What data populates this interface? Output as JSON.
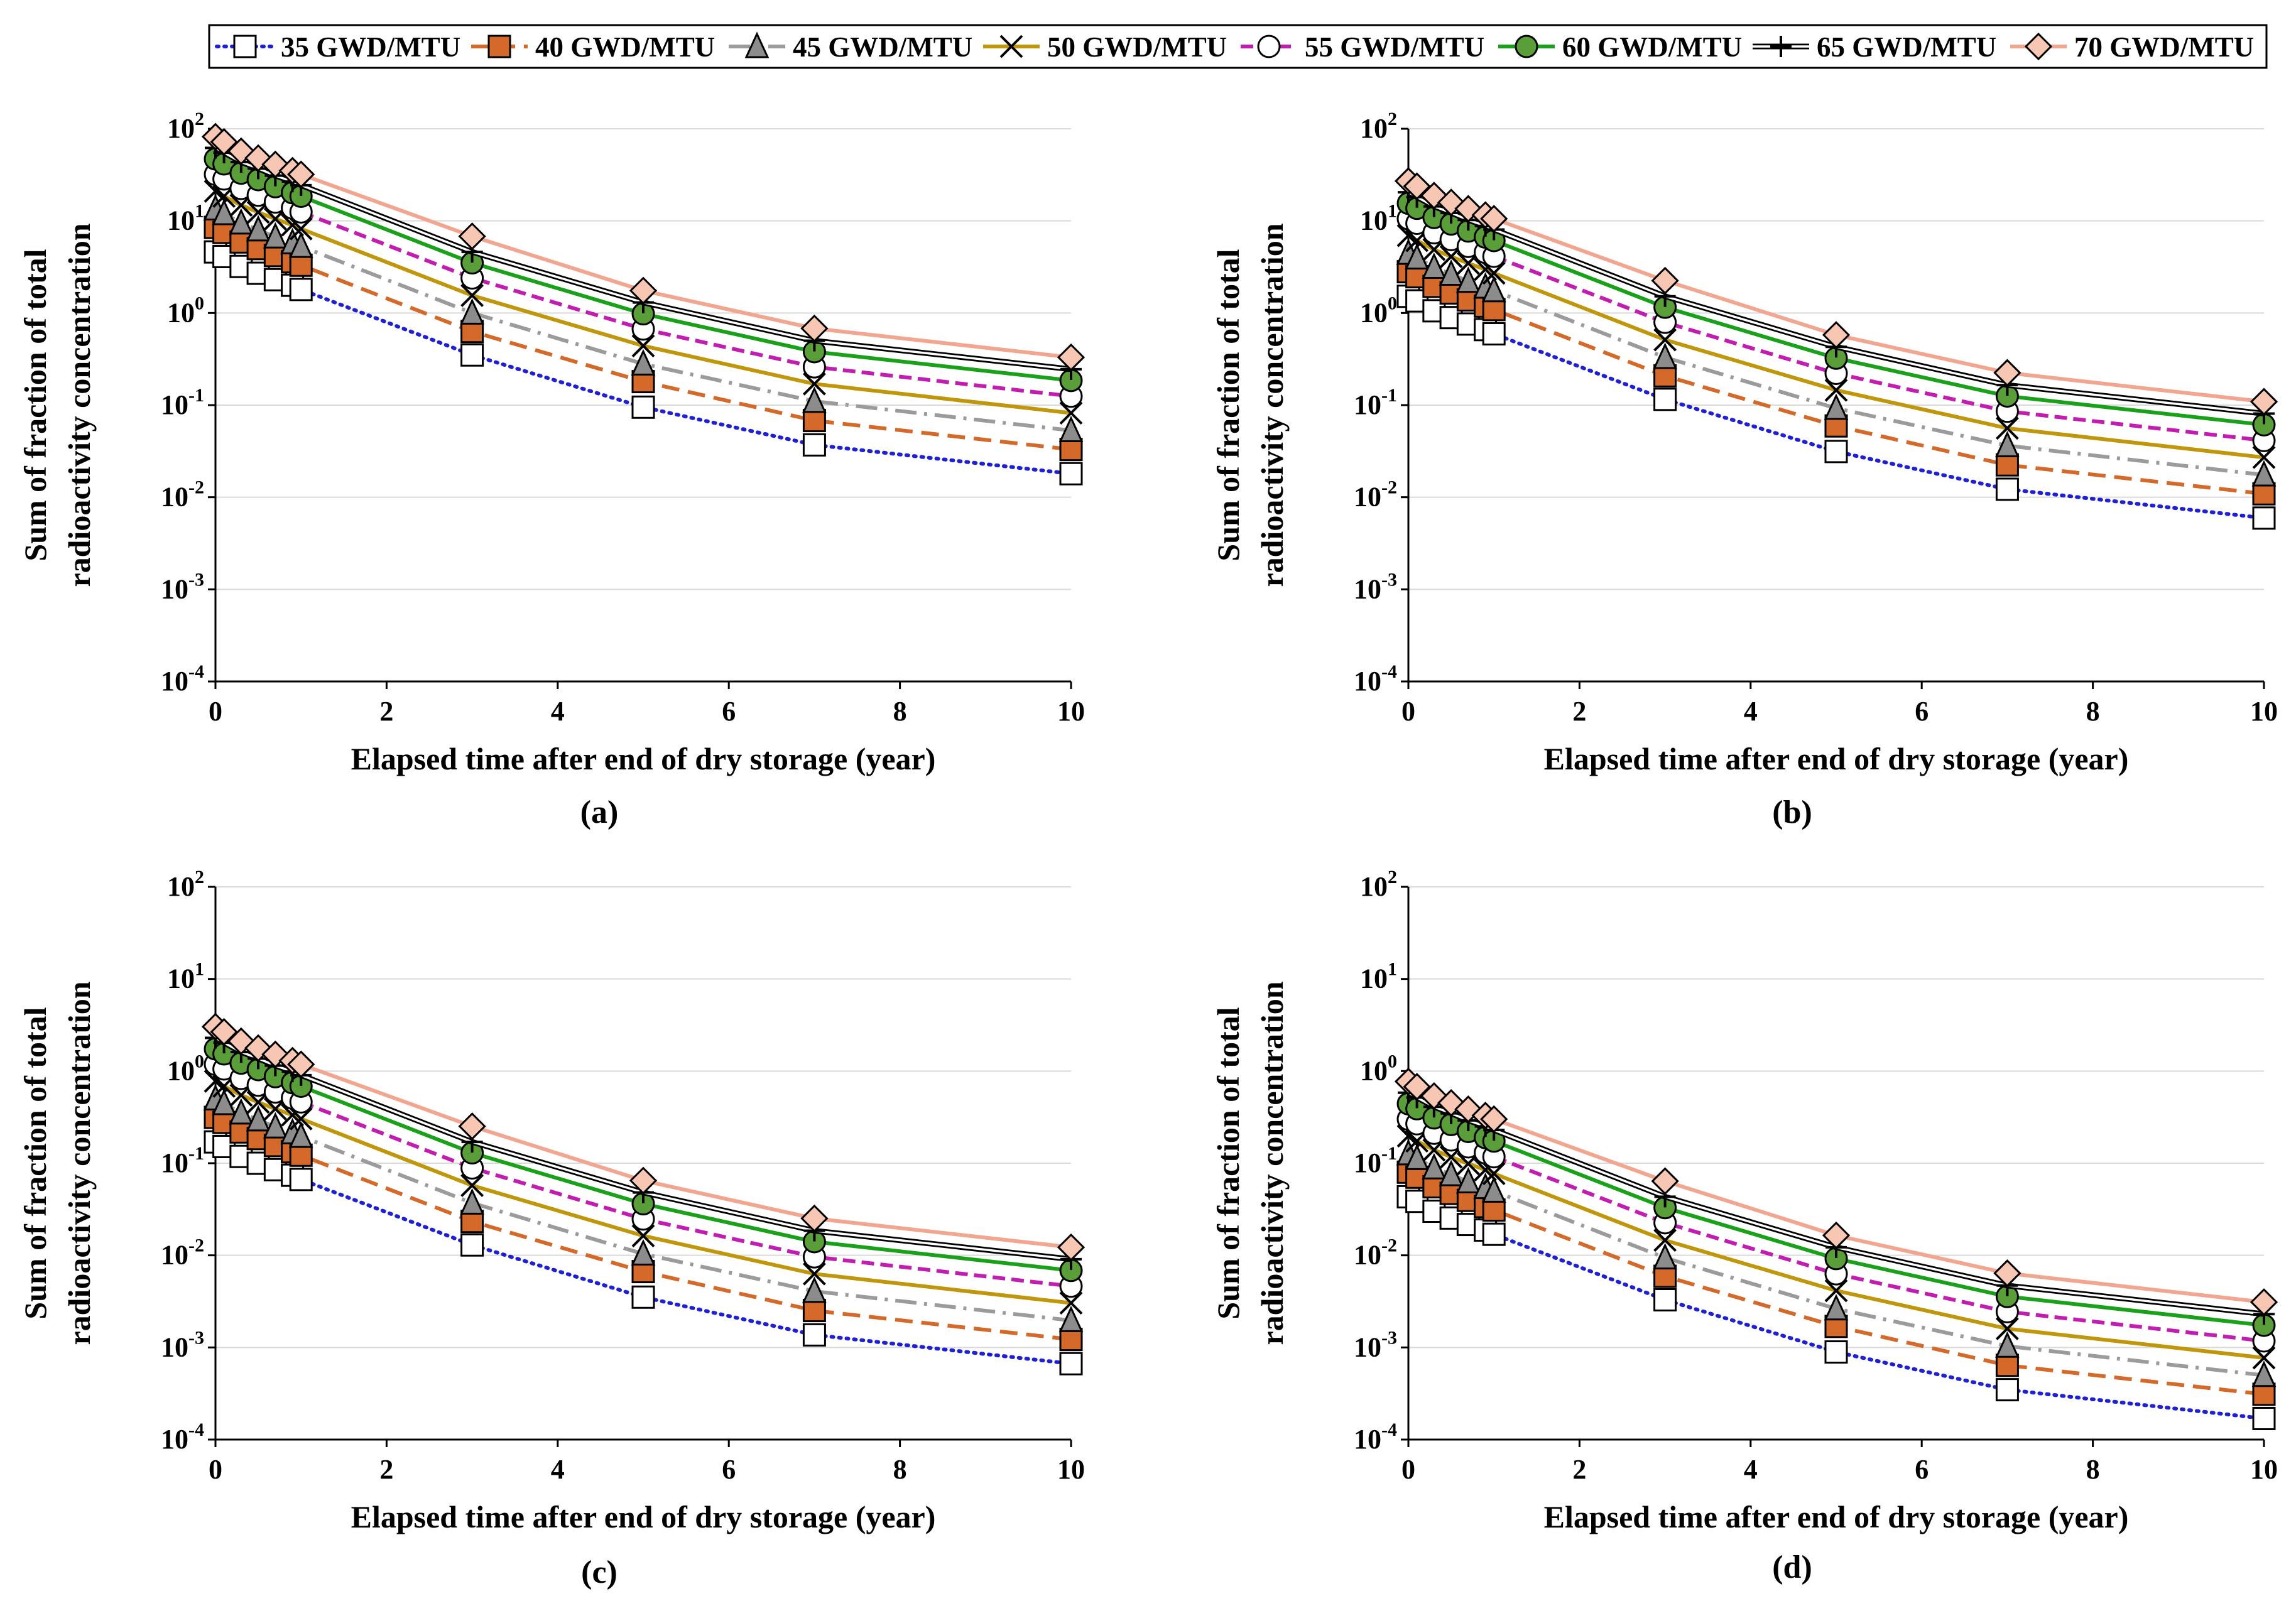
{
  "legend": [
    {
      "name": "35 GWD/MTU",
      "color": "#1f1fd6",
      "dash": "dot",
      "marker": "square-open"
    },
    {
      "name": "40 GWD/MTU",
      "color": "#d4692a",
      "dash": "dash",
      "marker": "square-filled"
    },
    {
      "name": "45 GWD/MTU",
      "color": "#9b9b9b",
      "dash": "dashdot",
      "marker": "triangle"
    },
    {
      "name": "50 GWD/MTU",
      "color": "#c0960a",
      "dash": "solid",
      "marker": "x"
    },
    {
      "name": "55 GWD/MTU",
      "color": "#c21cb0",
      "dash": "dash-short",
      "marker": "circle-open"
    },
    {
      "name": "60 GWD/MTU",
      "color": "#1aa11a",
      "dash": "solid",
      "marker": "circle-filled"
    },
    {
      "name": "65 GWD/MTU",
      "color": "#000000",
      "dash": "double",
      "marker": "plus"
    },
    {
      "name": "70 GWD/MTU",
      "color": "#f2a58f",
      "dash": "solid",
      "marker": "diamond"
    }
  ],
  "chart_data": [
    {
      "type": "line",
      "panel_label": "(a)",
      "xlabel": "Elapsed time after end of dry storage (year)",
      "ylabel_lines": [
        "Sum of fraction of total",
        "radioactivity concentration"
      ],
      "x_ticks": [
        "0",
        "2",
        "4",
        "6",
        "8",
        "10"
      ],
      "y_ticks": [
        {
          "b": "10",
          "e": "-4"
        },
        {
          "b": "10",
          "e": "-3"
        },
        {
          "b": "10",
          "e": "-2"
        },
        {
          "b": "10",
          "e": "-1"
        },
        {
          "b": "10",
          "e": "0"
        },
        {
          "b": "10",
          "e": "1"
        },
        {
          "b": "10",
          "e": "2"
        }
      ],
      "xlim": [
        0,
        10
      ],
      "ylim": [
        0.0001,
        100
      ],
      "yscale": "log",
      "x": [
        0,
        0.1,
        0.3,
        0.5,
        0.7,
        0.9,
        1,
        3,
        5,
        7,
        10
      ],
      "scale": 1.0
    },
    {
      "type": "line",
      "panel_label": "(b)",
      "xlabel": "Elapsed time after end of dry storage (year)",
      "ylabel_lines": [
        "Sum of fraction of total",
        "radioactivity concentration"
      ],
      "x_ticks": [
        "0",
        "2",
        "4",
        "6",
        "8",
        "10"
      ],
      "y_ticks": [
        {
          "b": "10",
          "e": "-4"
        },
        {
          "b": "10",
          "e": "-3"
        },
        {
          "b": "10",
          "e": "-2"
        },
        {
          "b": "10",
          "e": "-1"
        },
        {
          "b": "10",
          "e": "0"
        },
        {
          "b": "10",
          "e": "1"
        },
        {
          "b": "10",
          "e": "2"
        }
      ],
      "xlim": [
        0,
        10
      ],
      "ylim": [
        0.0001,
        100
      ],
      "yscale": "log",
      "x": [
        0,
        0.1,
        0.3,
        0.5,
        0.7,
        0.9,
        1,
        3,
        5,
        7,
        10
      ],
      "scale": 0.33
    },
    {
      "type": "line",
      "panel_label": "(c)",
      "xlabel": "Elapsed time after end of dry storage (year)",
      "ylabel_lines": [
        "Sum of fraction of total",
        "radioactivity concentration"
      ],
      "x_ticks": [
        "0",
        "2",
        "4",
        "6",
        "8",
        "10"
      ],
      "y_ticks": [
        {
          "b": "10",
          "e": "-4"
        },
        {
          "b": "10",
          "e": "-3"
        },
        {
          "b": "10",
          "e": "-2"
        },
        {
          "b": "10",
          "e": "-1"
        },
        {
          "b": "10",
          "e": "0"
        },
        {
          "b": "10",
          "e": "1"
        },
        {
          "b": "10",
          "e": "2"
        }
      ],
      "xlim": [
        0,
        10
      ],
      "ylim": [
        0.0001,
        100
      ],
      "yscale": "log",
      "x": [
        0,
        0.1,
        0.3,
        0.5,
        0.7,
        0.9,
        1,
        3,
        5,
        7,
        10
      ],
      "scale": 0.037
    },
    {
      "type": "line",
      "panel_label": "(d)",
      "xlabel": "Elapsed time after end of dry storage (year)",
      "ylabel_lines": [
        "Sum of fraction of total",
        "radioactivity concentration"
      ],
      "x_ticks": [
        "0",
        "2",
        "4",
        "6",
        "8",
        "10"
      ],
      "y_ticks": [
        {
          "b": "10",
          "e": "-4"
        },
        {
          "b": "10",
          "e": "-3"
        },
        {
          "b": "10",
          "e": "-2"
        },
        {
          "b": "10",
          "e": "-1"
        },
        {
          "b": "10",
          "e": "0"
        },
        {
          "b": "10",
          "e": "1"
        },
        {
          "b": "10",
          "e": "2"
        }
      ],
      "xlim": [
        0,
        10
      ],
      "ylim": [
        0.0001,
        100
      ],
      "yscale": "log",
      "x": [
        0,
        0.1,
        0.3,
        0.5,
        0.7,
        0.9,
        1,
        3,
        5,
        7,
        10
      ],
      "scale": 0.0094
    }
  ],
  "base_series": [
    {
      "name": "35 GWD/MTU",
      "values": [
        4.6,
        4.1,
        3.2,
        2.7,
        2.3,
        2.0,
        1.8,
        0.35,
        0.095,
        0.037,
        0.018
      ]
    },
    {
      "name": "40 GWD/MTU",
      "values": [
        8.5,
        7.5,
        5.9,
        5.0,
        4.2,
        3.6,
        3.3,
        0.63,
        0.18,
        0.068,
        0.033
      ]
    },
    {
      "name": "45 GWD/MTU",
      "values": [
        13.5,
        12.0,
        9.5,
        8.0,
        6.7,
        5.8,
        5.3,
        1.0,
        0.28,
        0.11,
        0.053
      ]
    },
    {
      "name": "50 GWD/MTU",
      "values": [
        21.0,
        18.5,
        14.8,
        12.4,
        10.5,
        9.0,
        8.2,
        1.55,
        0.44,
        0.17,
        0.082
      ]
    },
    {
      "name": "55 GWD/MTU",
      "values": [
        32.0,
        28.5,
        22.5,
        19.0,
        16.0,
        13.8,
        12.5,
        2.4,
        0.67,
        0.26,
        0.125
      ]
    },
    {
      "name": "60 GWD/MTU",
      "values": [
        47.0,
        41.5,
        33.0,
        28.0,
        23.5,
        20.2,
        18.5,
        3.5,
        0.98,
        0.38,
        0.185
      ]
    },
    {
      "name": "65 GWD/MTU",
      "values": [
        62.0,
        55.0,
        43.5,
        37.0,
        31.0,
        26.7,
        24.4,
        4.6,
        1.3,
        0.5,
        0.245
      ]
    },
    {
      "name": "70 GWD/MTU",
      "values": [
        82.0,
        72.0,
        57.0,
        48.0,
        41.0,
        35.0,
        32.0,
        6.8,
        1.75,
        0.68,
        0.33
      ]
    }
  ]
}
